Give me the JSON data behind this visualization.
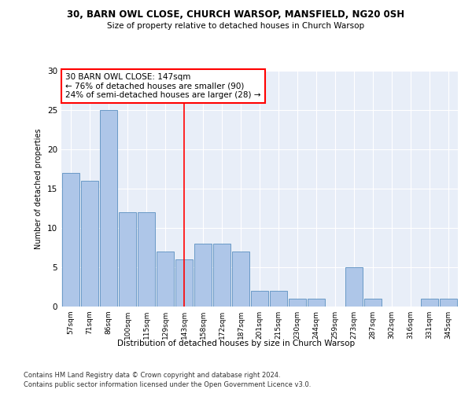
{
  "title1": "30, BARN OWL CLOSE, CHURCH WARSOP, MANSFIELD, NG20 0SH",
  "title2": "Size of property relative to detached houses in Church Warsop",
  "xlabel": "Distribution of detached houses by size in Church Warsop",
  "ylabel": "Number of detached properties",
  "categories": [
    "57sqm",
    "71sqm",
    "86sqm",
    "100sqm",
    "115sqm",
    "129sqm",
    "143sqm",
    "158sqm",
    "172sqm",
    "187sqm",
    "201sqm",
    "215sqm",
    "230sqm",
    "244sqm",
    "259sqm",
    "273sqm",
    "287sqm",
    "302sqm",
    "316sqm",
    "331sqm",
    "345sqm"
  ],
  "values": [
    17,
    16,
    25,
    12,
    12,
    7,
    6,
    8,
    8,
    7,
    2,
    2,
    1,
    1,
    0,
    5,
    1,
    0,
    0,
    1,
    1
  ],
  "bar_color": "#aec6e8",
  "bar_edge_color": "#5a8fc0",
  "highlight_index": 6,
  "annotation_text": "30 BARN OWL CLOSE: 147sqm\n← 76% of detached houses are smaller (90)\n24% of semi-detached houses are larger (28) →",
  "footer1": "Contains HM Land Registry data © Crown copyright and database right 2024.",
  "footer2": "Contains public sector information licensed under the Open Government Licence v3.0.",
  "ylim": [
    0,
    30
  ],
  "background_color": "#e8eef8"
}
